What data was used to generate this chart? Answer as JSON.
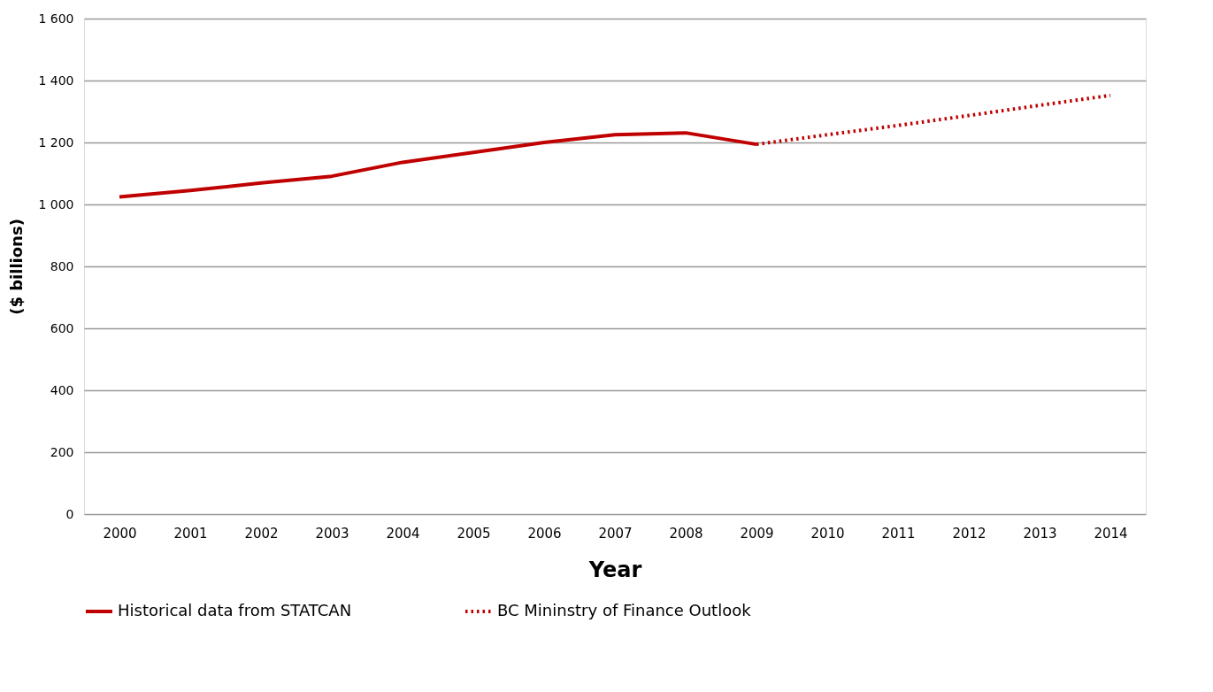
{
  "chart_data": {
    "type": "line",
    "xlabel": "Year",
    "ylabel": "($ billions)",
    "categories": [
      "2000",
      "2001",
      "2002",
      "2003",
      "2004",
      "2005",
      "2006",
      "2007",
      "2008",
      "2009",
      "2010",
      "2011",
      "2012",
      "2013",
      "2014"
    ],
    "series": [
      {
        "name": "Historical data from STATCAN",
        "color": "#c00000",
        "line_style": "solid",
        "values": [
          1024,
          1045,
          1069,
          1091,
          1136,
          1168,
          1200,
          1225,
          1231,
          1194,
          null,
          null,
          null,
          null,
          null
        ]
      },
      {
        "name": "BC Mininstry of Finance Outlook",
        "color": "#c00000",
        "line_style": "dotted",
        "values": [
          null,
          null,
          null,
          null,
          null,
          null,
          null,
          null,
          null,
          1194,
          1225,
          1255,
          1287,
          1320,
          1352
        ]
      }
    ],
    "ylim": [
      0,
      1600
    ],
    "yticks": [
      0,
      200,
      400,
      600,
      800,
      {
        "value": 1000,
        "label": "1 000"
      },
      {
        "value": 1200,
        "label": "1 200"
      },
      {
        "value": 1400,
        "label": "1 400"
      },
      {
        "value": 1600,
        "label": "1 600"
      }
    ],
    "grid": "y",
    "legend": "bottom",
    "marker": "none"
  }
}
